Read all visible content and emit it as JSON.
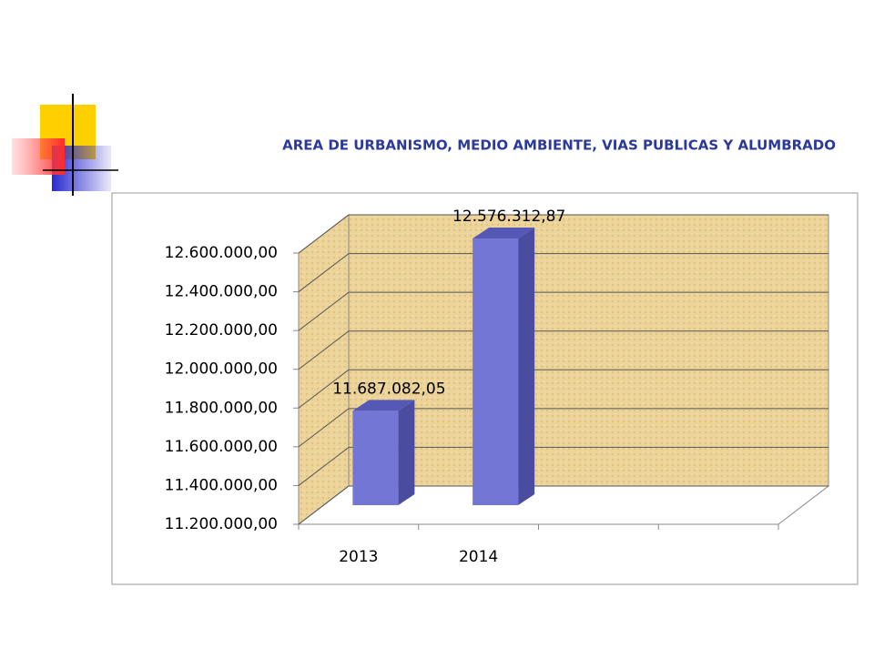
{
  "chart_data": {
    "type": "bar",
    "title": "AREA DE URBANISMO, MEDIO AMBIENTE, VIAS PUBLICAS Y ALUMBRADO",
    "categories": [
      "2013",
      "2014",
      null,
      null
    ],
    "values": [
      11687082.05,
      12576312.87,
      null,
      null
    ],
    "value_labels": [
      "11.687.082,05",
      "12.576.312,87",
      null,
      null
    ],
    "color": "#7476d6",
    "ylim": [
      11200000,
      12600000
    ],
    "yticks": [
      {
        "value": 11200000,
        "label": "11.200.000,00"
      },
      {
        "value": 11400000,
        "label": "11.400.000,00"
      },
      {
        "value": 11600000,
        "label": "11.600.000,00"
      },
      {
        "value": 11800000,
        "label": "11.800.000,00"
      },
      {
        "value": 12000000,
        "label": "12.000.000,00"
      },
      {
        "value": 12200000,
        "label": "12.200.000,00"
      },
      {
        "value": 12400000,
        "label": "12.400.000,00"
      },
      {
        "value": 12600000,
        "label": "12.600.000,00"
      }
    ],
    "grid": true
  }
}
